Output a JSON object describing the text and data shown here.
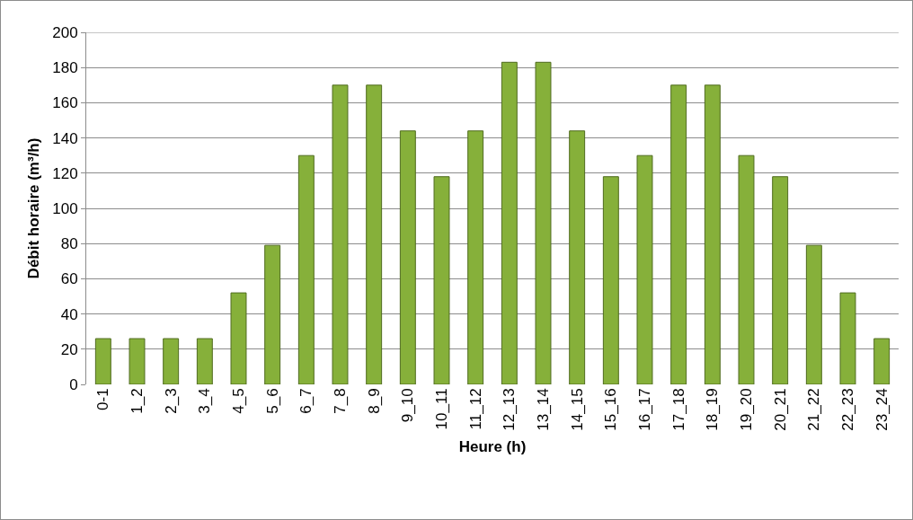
{
  "chart_data": {
    "type": "bar",
    "xlabel": "Heure (h)",
    "ylabel": "Débit horaire (m³/h)",
    "categories": [
      "0-1",
      "1_2",
      "2_3",
      "3_4",
      "4_5",
      "5_6",
      "6_7",
      "7_8",
      "8_9",
      "9_10",
      "10_11",
      "11_12",
      "12_13",
      "13_14",
      "14_15",
      "15_16",
      "16_17",
      "17_18",
      "18_19",
      "19_20",
      "20_21",
      "21_22",
      "22_23",
      "23_24"
    ],
    "values": [
      26,
      26,
      26,
      26,
      52,
      79,
      130,
      170,
      170,
      144,
      118,
      144,
      183,
      183,
      144,
      118,
      130,
      170,
      170,
      130,
      118,
      79,
      52,
      26
    ],
    "color": "#86b03a",
    "ylim": [
      0,
      200
    ],
    "yticks": [
      0,
      20,
      40,
      60,
      80,
      100,
      120,
      140,
      160,
      180,
      200
    ],
    "grid": "y"
  }
}
